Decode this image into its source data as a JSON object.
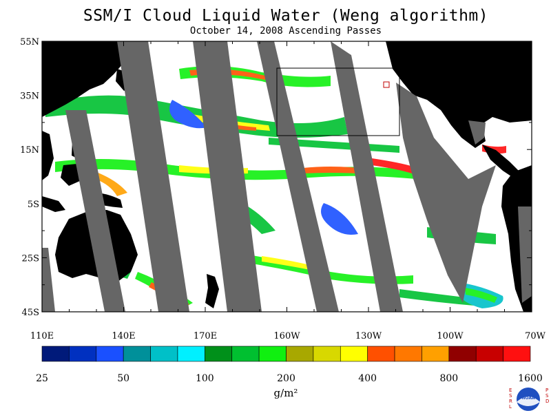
{
  "title": "SSM/I Cloud Liquid Water (Weng algorithm)",
  "subtitle": "October 14, 2008  Ascending Passes",
  "lat_labels": [
    "55N",
    "35N",
    "15N",
    "5S",
    "25S",
    "45S"
  ],
  "lon_labels": [
    "110E",
    "140E",
    "170E",
    "160W",
    "130W",
    "100W",
    "70W"
  ],
  "colorbar": {
    "colors": [
      "#001a7a",
      "#0030c0",
      "#1a50ff",
      "#00909a",
      "#00c0c8",
      "#00f0ff",
      "#00901a",
      "#00c030",
      "#10f010",
      "#a8a800",
      "#d8d800",
      "#ffff00",
      "#ff5000",
      "#ff7800",
      "#ffa000",
      "#900000",
      "#c80000",
      "#ff1010"
    ],
    "tick_labels": [
      "25",
      "50",
      "100",
      "200",
      "400",
      "800",
      "1600"
    ],
    "unit": "g/m²"
  },
  "logo": {
    "left_letters": "ESRL",
    "right_letters": "PSD",
    "center_text": "NOAA"
  }
}
